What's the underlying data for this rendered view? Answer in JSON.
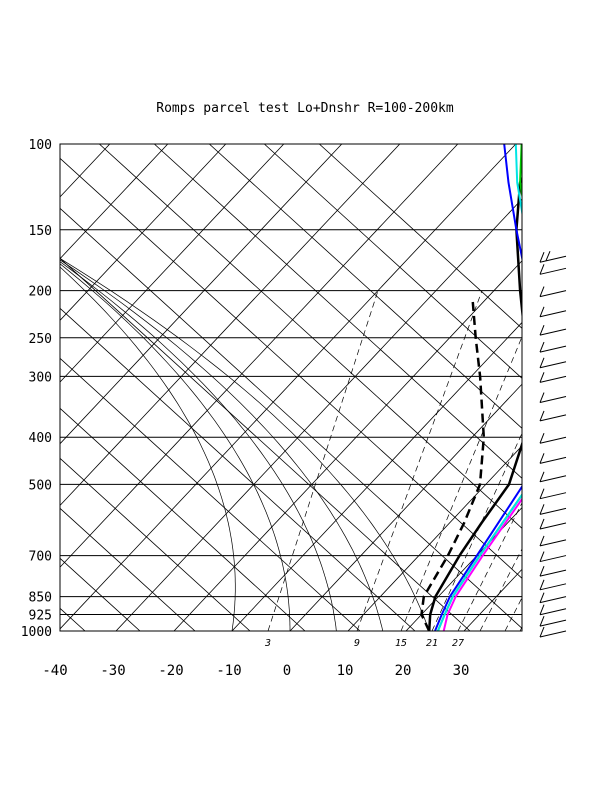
{
  "chart_data": {
    "type": "skew-t",
    "title": "Romps parcel test Lo+Dnshr R=100-200km",
    "pressure_ticks": [
      100,
      150,
      200,
      250,
      300,
      400,
      500,
      700,
      850,
      925,
      1000
    ],
    "pressure_tick_labels": [
      "100",
      "150",
      "200",
      "250",
      "300",
      "400",
      "500",
      "700",
      "850",
      "925",
      "1000"
    ],
    "temperature_ticks": [
      -40,
      -30,
      -20,
      -10,
      0,
      10,
      20,
      30
    ],
    "temperature_tick_labels": [
      "-40",
      "-30",
      "-20",
      "-10",
      "0",
      "10",
      "20",
      "30"
    ],
    "plim": [
      100,
      1000
    ],
    "mixing_ratio_labels": [
      "3",
      "9",
      "15",
      "21",
      "27"
    ],
    "series": [
      {
        "color": "#000000",
        "style": "solid",
        "width": 2.5,
        "points": [
          [
            1000,
            24
          ],
          [
            925,
            21.5
          ],
          [
            850,
            19.5
          ],
          [
            700,
            17
          ],
          [
            600,
            15.5
          ],
          [
            500,
            14
          ],
          [
            400,
            9
          ],
          [
            300,
            -1
          ],
          [
            250,
            -7
          ],
          [
            200,
            -15.5
          ],
          [
            150,
            -26
          ],
          [
            120,
            -33
          ],
          [
            100,
            -36
          ]
        ]
      },
      {
        "color": "#000000",
        "style": "dashed",
        "width": 2.5,
        "points": [
          [
            1000,
            24
          ],
          [
            925,
            20
          ],
          [
            850,
            17.5
          ],
          [
            700,
            15
          ],
          [
            600,
            12.5
          ],
          [
            500,
            9
          ],
          [
            400,
            2
          ],
          [
            300,
            -8.5
          ],
          [
            250,
            -15.5
          ],
          [
            210,
            -22
          ]
        ]
      },
      {
        "color": "#0000ff",
        "style": "solid",
        "width": 2,
        "points": [
          [
            1000,
            25
          ],
          [
            925,
            23.5
          ],
          [
            850,
            22
          ],
          [
            700,
            20
          ],
          [
            500,
            16.5
          ],
          [
            400,
            12
          ],
          [
            300,
            2.5
          ],
          [
            250,
            -4.5
          ],
          [
            200,
            -14
          ],
          [
            150,
            -26
          ],
          [
            120,
            -35
          ],
          [
            100,
            -42
          ]
        ]
      },
      {
        "color": "#00cc00",
        "style": "solid",
        "width": 2,
        "points": [
          [
            1000,
            25.5
          ],
          [
            925,
            24
          ],
          [
            850,
            22.5
          ],
          [
            700,
            20.5
          ],
          [
            500,
            17.5
          ],
          [
            400,
            15
          ],
          [
            300,
            4.5
          ],
          [
            250,
            -2.5
          ],
          [
            200,
            -12
          ],
          [
            150,
            -24
          ],
          [
            120,
            -33
          ],
          [
            100,
            -39
          ]
        ]
      },
      {
        "color": "#00e5e5",
        "style": "solid",
        "width": 2,
        "points": [
          [
            1000,
            25.5
          ],
          [
            925,
            24
          ],
          [
            850,
            22.5
          ],
          [
            700,
            20.5
          ],
          [
            500,
            17.5
          ],
          [
            400,
            12.5
          ],
          [
            300,
            3.5
          ],
          [
            250,
            -3.5
          ],
          [
            200,
            -12.5
          ],
          [
            150,
            -24.5
          ],
          [
            120,
            -33.5
          ],
          [
            100,
            -40
          ]
        ]
      },
      {
        "color": "#ff00ff",
        "style": "solid",
        "width": 2,
        "points": [
          [
            1000,
            26.5
          ],
          [
            925,
            24.5
          ],
          [
            850,
            23
          ],
          [
            700,
            21
          ],
          [
            500,
            18
          ],
          [
            400,
            17
          ],
          [
            300,
            8
          ],
          [
            250,
            1.5
          ],
          [
            200,
            -8
          ],
          [
            150,
            -20
          ],
          [
            120,
            -30
          ],
          [
            100,
            -37
          ]
        ]
      }
    ],
    "wind_barbs": [
      {
        "p": 170,
        "kind": "pennant"
      },
      {
        "p": 180,
        "kind": "barb"
      },
      {
        "p": 200,
        "kind": "barb"
      },
      {
        "p": 220,
        "kind": "barb"
      },
      {
        "p": 240,
        "kind": "barb"
      },
      {
        "p": 260,
        "kind": "barb"
      },
      {
        "p": 280,
        "kind": "barb"
      },
      {
        "p": 300,
        "kind": "barb"
      },
      {
        "p": 330,
        "kind": "barb"
      },
      {
        "p": 360,
        "kind": "barb"
      },
      {
        "p": 400,
        "kind": "barb"
      },
      {
        "p": 440,
        "kind": "barb"
      },
      {
        "p": 480,
        "kind": "barb"
      },
      {
        "p": 520,
        "kind": "barb"
      },
      {
        "p": 560,
        "kind": "barb"
      },
      {
        "p": 600,
        "kind": "barb"
      },
      {
        "p": 650,
        "kind": "barb"
      },
      {
        "p": 700,
        "kind": "barb"
      },
      {
        "p": 750,
        "kind": "barb"
      },
      {
        "p": 800,
        "kind": "barb"
      },
      {
        "p": 850,
        "kind": "barb"
      },
      {
        "p": 900,
        "kind": "barb"
      },
      {
        "p": 950,
        "kind": "barb"
      },
      {
        "p": 1000,
        "kind": "barb"
      }
    ]
  }
}
